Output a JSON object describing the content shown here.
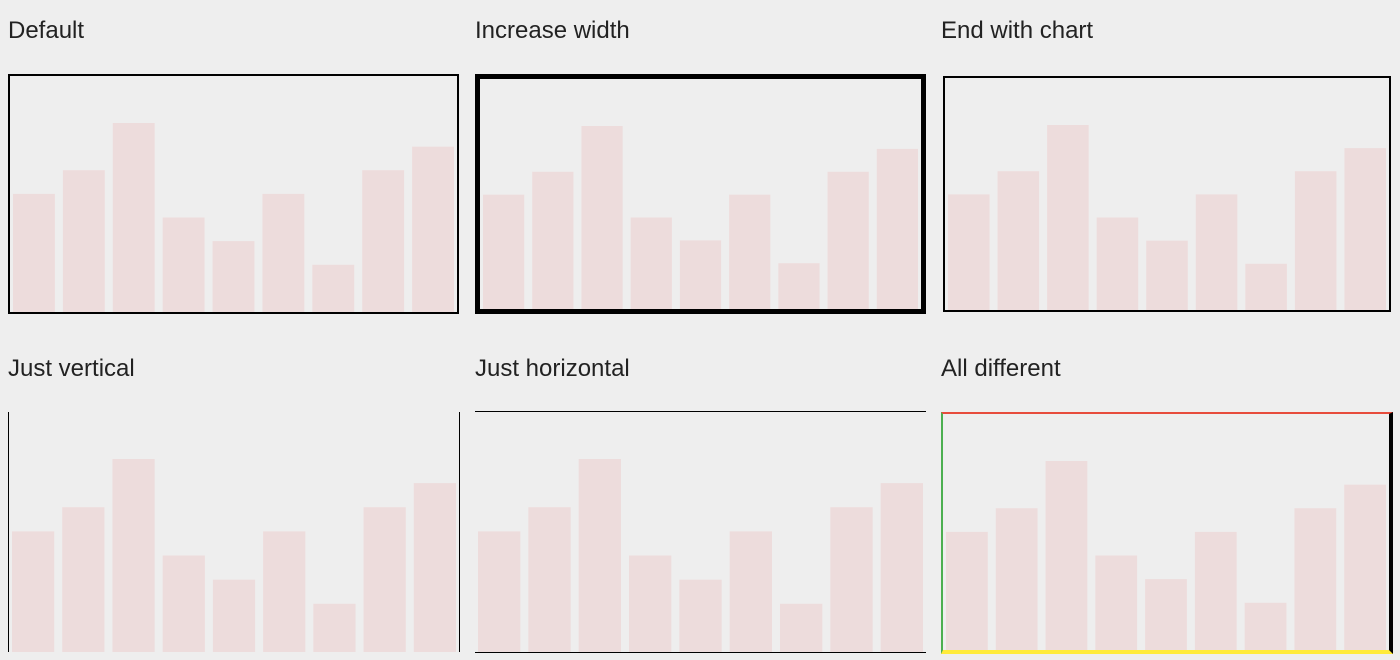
{
  "colors": {
    "background": "#eeeeee",
    "bar": "#eddcdc",
    "default_border": "#000000",
    "top_border": "#e74c3c",
    "left_border": "#4caf50",
    "right_border": "#000000",
    "bottom_border": "#ffeb3b"
  },
  "panels": [
    {
      "title": "Default"
    },
    {
      "title": "Increase width"
    },
    {
      "title": "End with chart"
    },
    {
      "title": "Just vertical"
    },
    {
      "title": "Just horizontal"
    },
    {
      "title": "All different"
    }
  ],
  "chart_data": [
    {
      "type": "bar",
      "values": [
        5,
        6,
        8,
        4,
        3,
        5,
        2,
        6,
        7
      ],
      "ylim": [
        0,
        8
      ],
      "grid": false,
      "border": "all sides, thin black"
    },
    {
      "type": "bar",
      "values": [
        5,
        6,
        8,
        4,
        3,
        5,
        2,
        6,
        7
      ],
      "ylim": [
        0,
        8
      ],
      "grid": false,
      "border": "all sides, thick black"
    },
    {
      "type": "bar",
      "values": [
        5,
        6,
        8,
        4,
        3,
        5,
        2,
        6,
        7
      ],
      "ylim": [
        0,
        8
      ],
      "grid": false,
      "border": "all sides, ends with chart"
    },
    {
      "type": "bar",
      "values": [
        5,
        6,
        8,
        4,
        3,
        5,
        2,
        6,
        7
      ],
      "ylim": [
        0,
        8
      ],
      "grid": false,
      "border": "left and right only"
    },
    {
      "type": "bar",
      "values": [
        5,
        6,
        8,
        4,
        3,
        5,
        2,
        6,
        7
      ],
      "ylim": [
        0,
        8
      ],
      "grid": false,
      "border": "top and bottom only"
    },
    {
      "type": "bar",
      "values": [
        5,
        6,
        8,
        4,
        3,
        5,
        2,
        6,
        7
      ],
      "ylim": [
        0,
        8
      ],
      "grid": false,
      "border": "top red, left green, right black, bottom yellow"
    }
  ]
}
